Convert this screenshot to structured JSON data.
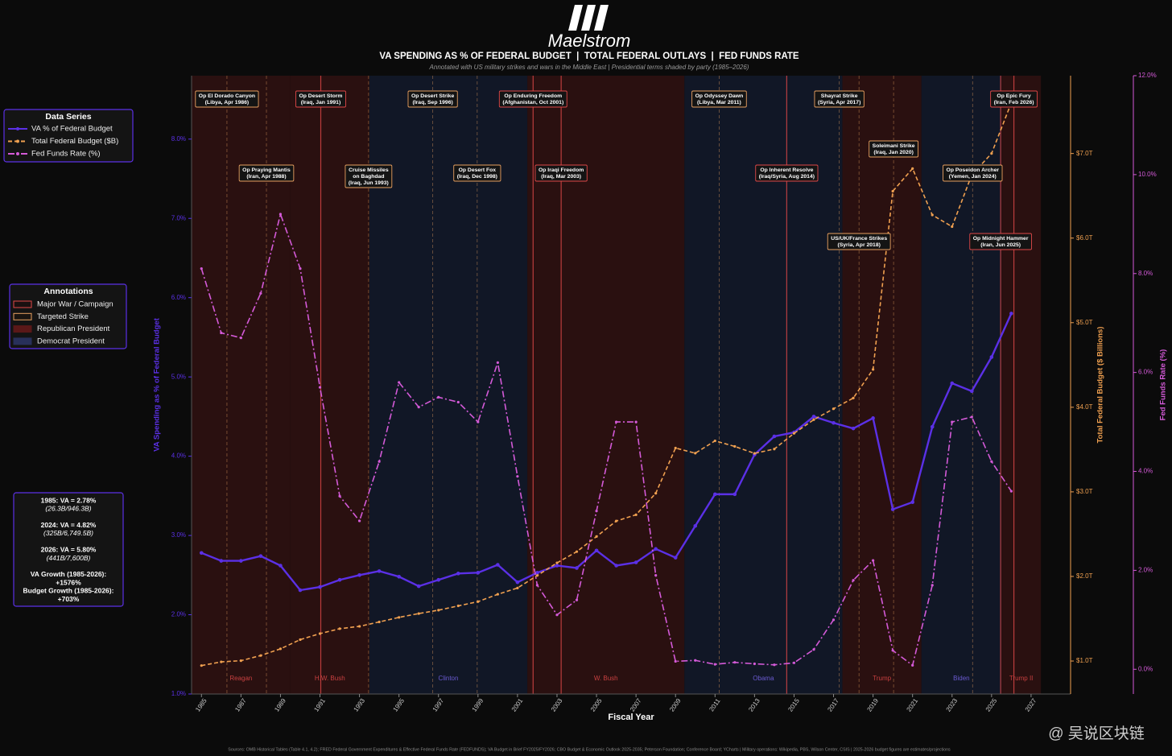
{
  "header": {
    "title": "Maelstrom",
    "subtitle": "VA SPENDING AS % OF FEDERAL BUDGET  |  TOTAL FEDERAL OUTLAYS  |  FED FUNDS RATE",
    "note": "Annotated with US military strikes and wars in the Middle East  |  Presidential terms shaded by party  (1985–2026)"
  },
  "chart_data": {
    "type": "line",
    "x": [
      1985,
      1986,
      1987,
      1988,
      1989,
      1990,
      1991,
      1992,
      1993,
      1994,
      1995,
      1996,
      1997,
      1998,
      1999,
      2000,
      2001,
      2002,
      2003,
      2004,
      2005,
      2006,
      2007,
      2008,
      2009,
      2010,
      2011,
      2012,
      2013,
      2014,
      2015,
      2016,
      2017,
      2018,
      2019,
      2020,
      2021,
      2022,
      2023,
      2024,
      2025,
      2026
    ],
    "series": [
      {
        "name": "VA % of Federal Budget",
        "color": "#5b30e6",
        "axis": "y",
        "line_style": "solid",
        "values": [
          2.78,
          2.68,
          2.68,
          2.74,
          2.62,
          2.31,
          2.35,
          2.44,
          2.5,
          2.55,
          2.48,
          2.36,
          2.44,
          2.52,
          2.53,
          2.63,
          2.41,
          2.53,
          2.62,
          2.59,
          2.81,
          2.62,
          2.66,
          2.83,
          2.72,
          3.12,
          3.52,
          3.52,
          4.02,
          4.25,
          4.3,
          4.5,
          4.42,
          4.35,
          4.48,
          3.33,
          3.42,
          4.37,
          4.92,
          4.82,
          5.25,
          5.8
        ]
      },
      {
        "name": "Total Federal Budget ($B)",
        "color": "#f0a050",
        "axis": "y2",
        "line_style": "dashed",
        "values": [
          946.3,
          990,
          1004,
          1065,
          1144,
          1253,
          1324,
          1382,
          1410,
          1462,
          1516,
          1561,
          1601,
          1652,
          1702,
          1789,
          1863,
          2011,
          2160,
          2293,
          2472,
          2655,
          2729,
          2983,
          3518,
          3457,
          3603,
          3537,
          3455,
          3506,
          3692,
          3853,
          3982,
          4109,
          4447,
          6554,
          6822,
          6273,
          6135,
          6749.5,
          7000,
          7600
        ]
      },
      {
        "name": "Fed Funds Rate (%)",
        "color": "#d45ad8",
        "axis": "y3",
        "line_style": "dashdot",
        "values": [
          8.1,
          6.8,
          6.7,
          7.6,
          9.2,
          8.1,
          5.7,
          3.5,
          3.0,
          4.2,
          5.8,
          5.3,
          5.5,
          5.4,
          5.0,
          6.2,
          3.9,
          1.7,
          1.1,
          1.4,
          3.2,
          5.0,
          5.0,
          1.9,
          0.16,
          0.18,
          0.1,
          0.14,
          0.11,
          0.09,
          0.13,
          0.4,
          1.0,
          1.8,
          2.2,
          0.38,
          0.08,
          1.7,
          5.0,
          5.1,
          4.2,
          3.6
        ]
      }
    ],
    "xlabel": "Fiscal Year",
    "ylabel": "VA Spending as % of Federal Budget",
    "y2label": "Total Federal Budget ($ Billions)",
    "y3label": "Fed Funds Rate (%)",
    "xlim": [
      1984.5,
      2029
    ],
    "xticks": [
      1985,
      1987,
      1989,
      1991,
      1993,
      1995,
      1997,
      1999,
      2001,
      2003,
      2005,
      2007,
      2009,
      2011,
      2013,
      2015,
      2017,
      2019,
      2021,
      2023,
      2025,
      2027
    ],
    "ylim": [
      1.0,
      8.8
    ],
    "yticks": [
      {
        "value": 1,
        "label": "1.0%"
      },
      {
        "value": 2,
        "label": "2.0%"
      },
      {
        "value": 3,
        "label": "3.0%"
      },
      {
        "value": 4,
        "label": "4.0%"
      },
      {
        "value": 5,
        "label": "5.0%"
      },
      {
        "value": 6,
        "label": "6.0%"
      },
      {
        "value": 7,
        "label": "7.0%"
      },
      {
        "value": 8,
        "label": "8.0%"
      }
    ],
    "y2lim": [
      610,
      7920
    ],
    "y2ticks": [
      {
        "value": 1000,
        "label": "$1.0T"
      },
      {
        "value": 2000,
        "label": "$2.0T"
      },
      {
        "value": 3000,
        "label": "$3.0T"
      },
      {
        "value": 4000,
        "label": "$4.0T"
      },
      {
        "value": 5000,
        "label": "$5.0T"
      },
      {
        "value": 6000,
        "label": "$6.0T"
      },
      {
        "value": 7000,
        "label": "$7.0T"
      }
    ],
    "y3lim": [
      -0.5,
      12.0
    ],
    "y3ticks": [
      {
        "value": 0,
        "label": "0.0%"
      },
      {
        "value": 2,
        "label": "2.0%"
      },
      {
        "value": 4,
        "label": "4.0%"
      },
      {
        "value": 6,
        "label": "6.0%"
      },
      {
        "value": 8,
        "label": "8.0%"
      },
      {
        "value": 10,
        "label": "10.0%"
      },
      {
        "value": 12,
        "label": "12.0%"
      }
    ],
    "terms": [
      {
        "name": "Reagan",
        "start": 1984.5,
        "end": 1989.5,
        "color": "#2a1010",
        "label_color": "#c84040"
      },
      {
        "name": "H.W. Bush",
        "start": 1989.5,
        "end": 1993.5,
        "color": "#2a1010",
        "label_color": "#c84040"
      },
      {
        "name": "Clinton",
        "start": 1993.5,
        "end": 2001.5,
        "color": "#111726",
        "label_color": "#6a5ad0"
      },
      {
        "name": "W. Bush",
        "start": 2001.5,
        "end": 2009.45,
        "color": "#2a1010",
        "label_color": "#c84040"
      },
      {
        "name": "Obama",
        "start": 2009.45,
        "end": 2017.45,
        "color": "#111726",
        "label_color": "#6a5ad0"
      },
      {
        "name": "Trump",
        "start": 2017.45,
        "end": 2021.45,
        "color": "#2a1010",
        "label_color": "#c84040"
      },
      {
        "name": "Biden",
        "start": 2021.45,
        "end": 2025.5,
        "color": "#111726",
        "label_color": "#6a5ad0"
      },
      {
        "name": "Trump II",
        "start": 2025.5,
        "end": 2027.5,
        "color": "#2a1010",
        "label_color": "#c84040"
      }
    ],
    "events": [
      {
        "lines": [
          "Op El Dorado Canyon",
          "(Libya, Apr 1986)"
        ],
        "x": 1986.29,
        "color": "#e8a060"
      },
      {
        "lines": [
          "Op Praying Mantis",
          "(Iran, Apr 1988)"
        ],
        "x": 1988.29,
        "color": "#e8a060"
      },
      {
        "lines": [
          "Op Desert Storm",
          "(Iraq, Jan 1991)"
        ],
        "x": 1991.04,
        "color": "#e04848"
      },
      {
        "lines": [
          "Cruise Missiles",
          "on Baghdad",
          "(Iraq, Jun 1993)"
        ],
        "x": 1993.46,
        "color": "#e8a060"
      },
      {
        "lines": [
          "Op Desert Strike",
          "(Iraq, Sep 1996)"
        ],
        "x": 1996.71,
        "color": "#e8a060"
      },
      {
        "lines": [
          "Op Desert Fox",
          "(Iraq, Dec 1998)"
        ],
        "x": 1998.96,
        "color": "#e8a060"
      },
      {
        "lines": [
          "Op Enduring Freedom",
          "(Afghanistan, Oct 2001)"
        ],
        "x": 2001.79,
        "color": "#e04848"
      },
      {
        "lines": [
          "Op Iraqi Freedom",
          "(Iraq, Mar 2003)"
        ],
        "x": 2003.21,
        "color": "#e04848"
      },
      {
        "lines": [
          "Op Odyssey Dawn",
          "(Libya, Mar 2011)"
        ],
        "x": 2011.21,
        "color": "#e8a060"
      },
      {
        "lines": [
          "Op Inherent Resolve",
          "(Iraq/Syria, Aug 2014)"
        ],
        "x": 2014.63,
        "color": "#e04848"
      },
      {
        "lines": [
          "Shayrat Strike",
          "(Syria, Apr 2017)"
        ],
        "x": 2017.29,
        "color": "#e8a060"
      },
      {
        "lines": [
          "US/UK/France Strikes",
          "(Syria, Apr 2018)"
        ],
        "x": 2018.29,
        "color": "#e8a060"
      },
      {
        "lines": [
          "Soleimani Strike",
          "(Iraq, Jan 2020)"
        ],
        "x": 2020.04,
        "color": "#e8a060"
      },
      {
        "lines": [
          "Op Poseidon Archer",
          "(Yemen, Jan 2024)"
        ],
        "x": 2024.04,
        "color": "#e8a060"
      },
      {
        "lines": [
          "Op Midnight Hammer",
          "(Iran, Jun 2025)"
        ],
        "x": 2025.46,
        "color": "#e04848"
      },
      {
        "lines": [
          "Op Epic Fury",
          "(Iran, Feb 2026)"
        ],
        "x": 2026.13,
        "color": "#e04848"
      }
    ],
    "legend": {
      "title": "Data Series"
    },
    "annotation_legend": {
      "title": "Annotations",
      "items": [
        {
          "label": "Major War / Campaign",
          "color": "#e04848",
          "fill": "#1a1010"
        },
        {
          "label": "Targeted Strike",
          "color": "#e8a060",
          "fill": "#1a1410"
        },
        {
          "label": "Republican President",
          "color": "#5a1818",
          "fill": "#5a1818"
        },
        {
          "label": "Democrat President",
          "color": "#28305a",
          "fill": "#28305a"
        }
      ]
    },
    "stats": [
      [
        "1985: VA = 2.78%",
        "(26.3B/946.3B)"
      ],
      [
        "2024: VA = 4.82%",
        "(325B/6,749.5B)"
      ],
      [
        "2026: VA = 5.80%",
        "(441B/7,600B)"
      ],
      [
        "VA Growth (1985-2026):",
        "+1576%",
        "Budget Growth (1985-2026):",
        "+703%"
      ]
    ]
  },
  "footer": {
    "sources": "Sources: OMB Historical Tables (Table 4.1, 4.2); FRED Federal Government Expenditures & Effective Federal Funds Rate (FEDFUNDS); VA Budget in Brief FY2025/FY2026; CBO Budget & Economic Outlook 2025-2035; Peterson Foundation; Conference Board; YCharts  |  Military operations: Wikipedia, PBS, Wilson Center, CSIS  |  2025-2026 budget figures are estimates/projections",
    "watermark": "@ 吴说区块链"
  }
}
